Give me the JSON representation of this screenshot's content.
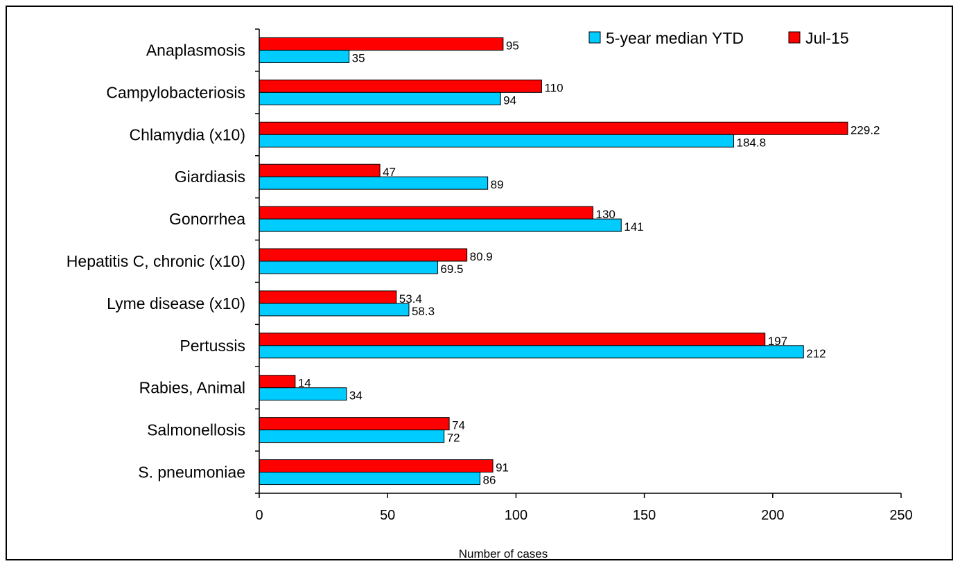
{
  "chart_data": {
    "type": "bar",
    "orientation": "horizontal",
    "categories": [
      "Anaplasmosis",
      "Campylobacteriosis",
      "Chlamydia (x10)",
      "Giardiasis",
      "Gonorrhea",
      "Hepatitis C, chronic (x10)",
      "Lyme disease (x10)",
      "Pertussis",
      "Rabies, Animal",
      "Salmonellosis",
      "S. pneumoniae"
    ],
    "series": [
      {
        "name": "Jul-15",
        "color": "#ff0000",
        "values": [
          95,
          110,
          229.2,
          47,
          130,
          80.9,
          53.4,
          197,
          14,
          74,
          91
        ],
        "labels": [
          "95",
          "110",
          "229.2",
          "47",
          "130",
          "80.9",
          "53.4",
          "197",
          "14",
          "74",
          "91"
        ]
      },
      {
        "name": "5-year median YTD",
        "color": "#00ccff",
        "values": [
          35,
          94,
          184.8,
          89,
          141,
          69.5,
          58.3,
          212,
          34,
          72,
          86
        ],
        "labels": [
          "35",
          "94",
          "184.8",
          "89",
          "141",
          "69.5",
          "58.3",
          "212",
          "34",
          "72",
          "86"
        ]
      }
    ],
    "xlabel": "Number of cases",
    "xlim": [
      0,
      250
    ],
    "xticks": [
      0,
      50,
      100,
      150,
      200,
      250
    ],
    "xtick_labels": [
      "0",
      "50",
      "100",
      "150",
      "200",
      "250"
    ],
    "grid": false,
    "legend": {
      "position": "top-right",
      "entries": [
        {
          "name": "5-year median YTD",
          "color": "#00ccff"
        },
        {
          "name": "Jul-15",
          "color": "#ff0000"
        }
      ]
    }
  }
}
